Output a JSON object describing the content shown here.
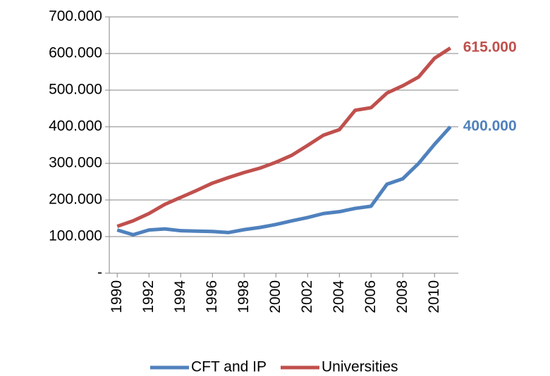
{
  "chart_data": {
    "type": "line",
    "x": [
      1990,
      1991,
      1992,
      1993,
      1994,
      1995,
      1996,
      1997,
      1998,
      1999,
      2000,
      2001,
      2002,
      2003,
      2004,
      2005,
      2006,
      2007,
      2008,
      2009,
      2010,
      2011
    ],
    "xlim": [
      1989.5,
      2011.5
    ],
    "xticks": [
      1990,
      1992,
      1994,
      1996,
      1998,
      2000,
      2002,
      2004,
      2006,
      2008,
      2010
    ],
    "ylim": [
      0,
      700000
    ],
    "yticks": [
      {
        "value": 0,
        "label": "-"
      },
      {
        "value": 100000,
        "label": "100.000"
      },
      {
        "value": 200000,
        "label": "200.000"
      },
      {
        "value": 300000,
        "label": "300.000"
      },
      {
        "value": 400000,
        "label": "400.000"
      },
      {
        "value": 500000,
        "label": "500.000"
      },
      {
        "value": 600000,
        "label": "600.000"
      },
      {
        "value": 700000,
        "label": "700.000"
      }
    ],
    "grid": true,
    "legend": "bottom",
    "series": [
      {
        "name": "CFT and IP",
        "color": "#4f81bd",
        "values": [
          118000,
          105000,
          118000,
          121000,
          116000,
          115000,
          114000,
          111000,
          119000,
          125000,
          133000,
          143000,
          152000,
          163000,
          168000,
          177000,
          183000,
          243000,
          258000,
          300000,
          352000,
          400000
        ],
        "value_labels": [
          null,
          null,
          null,
          null,
          null,
          null,
          null,
          null,
          null,
          null,
          null,
          null,
          null,
          null,
          null,
          null,
          null,
          null,
          null,
          null,
          null,
          "400.000"
        ]
      },
      {
        "name": "Universities",
        "color": "#c0504d",
        "values": [
          128000,
          143000,
          163000,
          188000,
          207000,
          226000,
          246000,
          261000,
          275000,
          287000,
          303000,
          322000,
          349000,
          377000,
          392000,
          445000,
          452000,
          492000,
          512000,
          536000,
          587000,
          615000
        ],
        "value_labels": [
          null,
          null,
          null,
          null,
          null,
          null,
          null,
          null,
          null,
          null,
          null,
          null,
          null,
          null,
          null,
          null,
          null,
          null,
          null,
          null,
          null,
          "615.000"
        ]
      }
    ]
  }
}
